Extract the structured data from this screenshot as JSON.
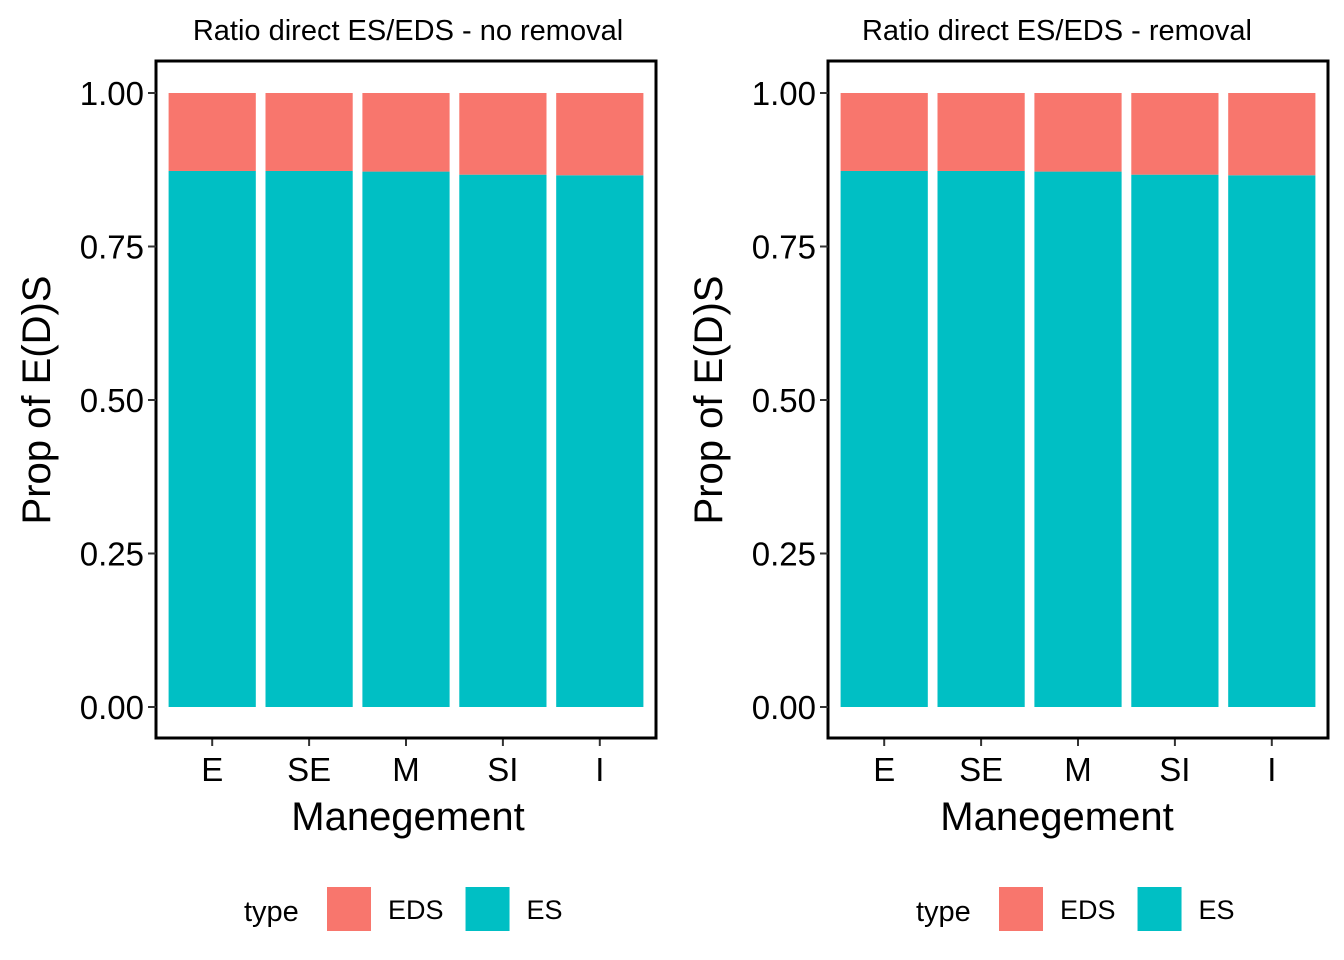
{
  "chart_data": [
    {
      "type": "bar",
      "stacked": true,
      "title": "Ratio direct ES/EDS - no removal",
      "xlabel": "Manegement",
      "ylabel": "Prop of E(D)S",
      "categories": [
        "E",
        "SE",
        "M",
        "SI",
        "I"
      ],
      "ylim": [
        0,
        1
      ],
      "yticks": [
        "0.00",
        "0.25",
        "0.50",
        "0.75",
        "1.00"
      ],
      "series": [
        {
          "name": "ES",
          "color": "#00BFC4",
          "values": [
            0.873,
            0.873,
            0.872,
            0.867,
            0.866
          ]
        },
        {
          "name": "EDS",
          "color": "#F8766D",
          "values": [
            0.127,
            0.127,
            0.128,
            0.133,
            0.134
          ]
        }
      ],
      "legend": {
        "title": "type",
        "position": "bottom",
        "entries": [
          "EDS",
          "ES"
        ]
      },
      "grid": false
    },
    {
      "type": "bar",
      "stacked": true,
      "title": "Ratio direct ES/EDS - removal",
      "xlabel": "Manegement",
      "ylabel": "Prop of E(D)S",
      "categories": [
        "E",
        "SE",
        "M",
        "SI",
        "I"
      ],
      "ylim": [
        0,
        1
      ],
      "yticks": [
        "0.00",
        "0.25",
        "0.50",
        "0.75",
        "1.00"
      ],
      "series": [
        {
          "name": "ES",
          "color": "#00BFC4",
          "values": [
            0.873,
            0.873,
            0.872,
            0.867,
            0.866
          ]
        },
        {
          "name": "EDS",
          "color": "#F8766D",
          "values": [
            0.127,
            0.127,
            0.128,
            0.133,
            0.134
          ]
        }
      ],
      "legend": {
        "title": "type",
        "position": "bottom",
        "entries": [
          "EDS",
          "ES"
        ]
      },
      "grid": false
    }
  ]
}
